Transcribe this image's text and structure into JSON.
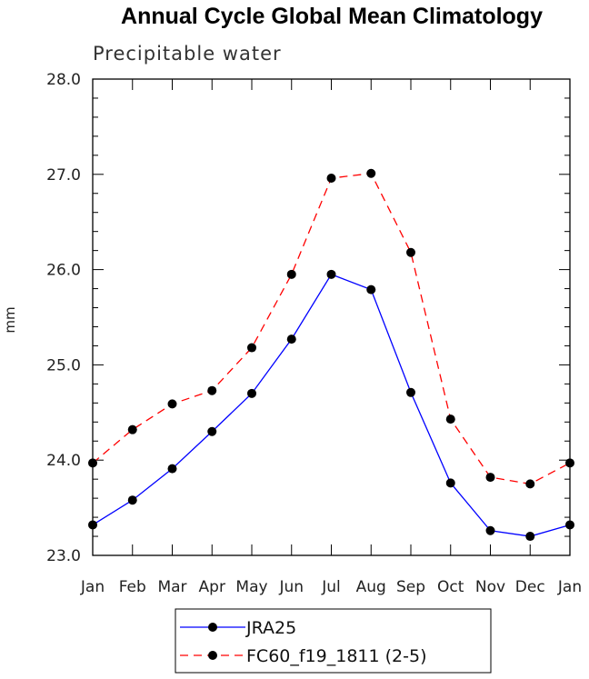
{
  "chart_data": {
    "type": "line",
    "title": "Annual Cycle Global Mean Climatology",
    "subtitle": "Precipitable water",
    "xlabel": "",
    "ylabel": "mm",
    "categories": [
      "Jan",
      "Feb",
      "Mar",
      "Apr",
      "May",
      "Jun",
      "Jul",
      "Aug",
      "Sep",
      "Oct",
      "Nov",
      "Dec",
      "Jan"
    ],
    "ylim": [
      23.0,
      28.0
    ],
    "yticks": [
      23.0,
      24.0,
      25.0,
      26.0,
      27.0,
      28.0
    ],
    "ytick_labels": [
      "23.0",
      "24.0",
      "25.0",
      "26.0",
      "27.0",
      "28.0"
    ],
    "grid": false,
    "legend_position": "bottom-center",
    "series": [
      {
        "name": "JRA25",
        "color": "#0000ff",
        "dashed": false,
        "values": [
          23.32,
          23.58,
          23.91,
          24.3,
          24.7,
          25.27,
          25.95,
          25.79,
          24.71,
          23.76,
          23.26,
          23.2,
          23.32
        ]
      },
      {
        "name": "FC60_f19_1811 (2-5)",
        "color": "#ff0000",
        "dashed": true,
        "values": [
          23.97,
          24.32,
          24.59,
          24.73,
          25.18,
          25.95,
          26.96,
          27.01,
          26.18,
          24.43,
          23.82,
          23.75,
          23.97
        ]
      }
    ]
  }
}
